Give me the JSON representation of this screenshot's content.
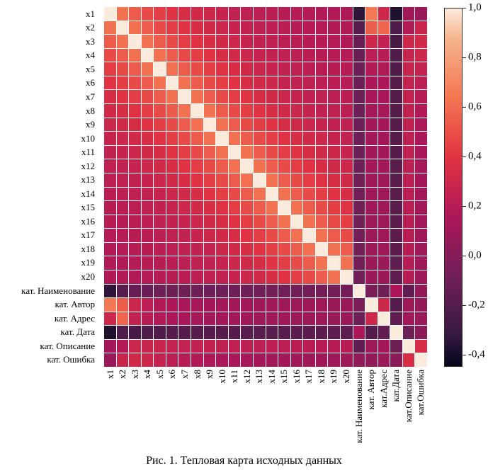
{
  "figure": {
    "caption": "Рис. 1. Тепловая карта исходных данных"
  },
  "chart_data": {
    "type": "heatmap",
    "title": "",
    "y_labels": [
      "x1",
      "x2",
      "x3",
      "x4",
      "x5",
      "x6",
      "x7",
      "x8",
      "x9",
      "x10",
      "x11",
      "x12",
      "x13",
      "x14",
      "x15",
      "x16",
      "x17",
      "x18",
      "x19",
      "x20",
      "кат. Наименование",
      "кат. Автор",
      "кат. Адрес",
      "кат. Дата",
      "кат. Описание",
      "кат. Ошибка"
    ],
    "x_labels": [
      "x1",
      "x2",
      "x3",
      "x4",
      "x5",
      "x6",
      "x7",
      "x8",
      "x9",
      "x10",
      "x11",
      "x12",
      "x13",
      "x14",
      "x15",
      "x16",
      "x17",
      "x18",
      "x19",
      "x20",
      "кат. Наименование",
      "кат. Автор",
      "кат.Адрес",
      "кат.Дата",
      "кат.Описание",
      "кат.Ошибка"
    ],
    "vmin": -0.45,
    "vmax": 1.0,
    "matrix": [
      [
        1.0,
        0.62,
        0.54,
        0.48,
        0.43,
        0.39,
        0.35,
        0.32,
        0.3,
        0.27,
        0.25,
        0.24,
        0.22,
        0.21,
        0.2,
        0.2,
        0.19,
        0.18,
        0.18,
        0.17,
        -0.35,
        0.65,
        0.3,
        -0.38,
        0.12,
        0.08
      ],
      [
        0.62,
        1.0,
        0.62,
        0.54,
        0.48,
        0.43,
        0.39,
        0.35,
        0.32,
        0.3,
        0.27,
        0.25,
        0.24,
        0.22,
        0.21,
        0.2,
        0.2,
        0.19,
        0.18,
        0.18,
        -0.18,
        0.55,
        0.58,
        -0.22,
        0.18,
        0.28
      ],
      [
        0.54,
        0.62,
        1.0,
        0.62,
        0.54,
        0.48,
        0.43,
        0.39,
        0.35,
        0.32,
        0.3,
        0.27,
        0.25,
        0.24,
        0.22,
        0.21,
        0.2,
        0.2,
        0.19,
        0.18,
        -0.12,
        0.3,
        0.25,
        -0.25,
        0.3,
        0.32
      ],
      [
        0.48,
        0.54,
        0.62,
        1.0,
        0.62,
        0.54,
        0.48,
        0.43,
        0.39,
        0.35,
        0.32,
        0.3,
        0.27,
        0.25,
        0.24,
        0.22,
        0.21,
        0.2,
        0.2,
        0.19,
        -0.12,
        0.22,
        0.2,
        -0.22,
        0.28,
        0.3
      ],
      [
        0.43,
        0.48,
        0.54,
        0.62,
        1.0,
        0.62,
        0.54,
        0.48,
        0.43,
        0.39,
        0.35,
        0.32,
        0.3,
        0.27,
        0.25,
        0.24,
        0.22,
        0.21,
        0.2,
        0.2,
        -0.1,
        0.18,
        0.18,
        -0.22,
        0.28,
        0.26
      ],
      [
        0.39,
        0.43,
        0.48,
        0.54,
        0.62,
        1.0,
        0.62,
        0.54,
        0.48,
        0.43,
        0.39,
        0.35,
        0.32,
        0.3,
        0.27,
        0.25,
        0.24,
        0.22,
        0.21,
        0.2,
        -0.1,
        0.15,
        0.15,
        -0.2,
        0.26,
        0.22
      ],
      [
        0.35,
        0.39,
        0.43,
        0.48,
        0.54,
        0.62,
        1.0,
        0.62,
        0.54,
        0.48,
        0.43,
        0.39,
        0.35,
        0.32,
        0.3,
        0.27,
        0.25,
        0.24,
        0.22,
        0.21,
        -0.1,
        0.14,
        0.14,
        -0.2,
        0.26,
        0.2
      ],
      [
        0.32,
        0.35,
        0.39,
        0.43,
        0.48,
        0.54,
        0.62,
        1.0,
        0.62,
        0.54,
        0.48,
        0.43,
        0.39,
        0.35,
        0.32,
        0.3,
        0.27,
        0.25,
        0.24,
        0.22,
        -0.1,
        0.13,
        0.13,
        -0.2,
        0.25,
        0.18
      ],
      [
        0.3,
        0.32,
        0.35,
        0.39,
        0.43,
        0.48,
        0.54,
        0.62,
        1.0,
        0.62,
        0.54,
        0.48,
        0.43,
        0.39,
        0.35,
        0.32,
        0.3,
        0.27,
        0.25,
        0.24,
        -0.09,
        0.12,
        0.12,
        -0.19,
        0.25,
        0.16
      ],
      [
        0.27,
        0.3,
        0.32,
        0.35,
        0.39,
        0.43,
        0.48,
        0.54,
        0.62,
        1.0,
        0.62,
        0.54,
        0.48,
        0.43,
        0.39,
        0.35,
        0.32,
        0.3,
        0.27,
        0.25,
        -0.09,
        0.12,
        0.12,
        -0.19,
        0.24,
        0.15
      ],
      [
        0.25,
        0.27,
        0.3,
        0.32,
        0.35,
        0.39,
        0.43,
        0.48,
        0.54,
        0.62,
        1.0,
        0.62,
        0.54,
        0.48,
        0.43,
        0.39,
        0.35,
        0.32,
        0.3,
        0.27,
        -0.09,
        0.11,
        0.11,
        -0.19,
        0.24,
        0.14
      ],
      [
        0.24,
        0.25,
        0.27,
        0.3,
        0.32,
        0.35,
        0.39,
        0.43,
        0.48,
        0.54,
        0.62,
        1.0,
        0.62,
        0.54,
        0.48,
        0.43,
        0.39,
        0.35,
        0.32,
        0.3,
        -0.09,
        0.11,
        0.11,
        -0.18,
        0.23,
        0.13
      ],
      [
        0.22,
        0.24,
        0.25,
        0.27,
        0.3,
        0.32,
        0.35,
        0.39,
        0.43,
        0.48,
        0.54,
        0.62,
        1.0,
        0.62,
        0.54,
        0.48,
        0.43,
        0.39,
        0.35,
        0.32,
        -0.08,
        0.1,
        0.1,
        -0.18,
        0.23,
        0.12
      ],
      [
        0.21,
        0.22,
        0.24,
        0.25,
        0.27,
        0.3,
        0.32,
        0.35,
        0.39,
        0.43,
        0.48,
        0.54,
        0.62,
        1.0,
        0.62,
        0.54,
        0.48,
        0.43,
        0.39,
        0.35,
        -0.08,
        0.1,
        0.1,
        -0.18,
        0.22,
        0.12
      ],
      [
        0.2,
        0.21,
        0.22,
        0.24,
        0.25,
        0.27,
        0.3,
        0.32,
        0.35,
        0.39,
        0.43,
        0.48,
        0.54,
        0.62,
        1.0,
        0.62,
        0.54,
        0.48,
        0.43,
        0.39,
        -0.08,
        0.1,
        0.1,
        -0.18,
        0.22,
        0.11
      ],
      [
        0.2,
        0.2,
        0.21,
        0.22,
        0.24,
        0.25,
        0.27,
        0.3,
        0.32,
        0.35,
        0.39,
        0.43,
        0.48,
        0.54,
        0.62,
        1.0,
        0.62,
        0.54,
        0.48,
        0.43,
        -0.08,
        0.09,
        0.09,
        -0.17,
        0.21,
        0.11
      ],
      [
        0.19,
        0.2,
        0.2,
        0.21,
        0.22,
        0.24,
        0.25,
        0.27,
        0.3,
        0.32,
        0.35,
        0.39,
        0.43,
        0.48,
        0.54,
        0.62,
        1.0,
        0.62,
        0.54,
        0.48,
        -0.07,
        0.09,
        0.09,
        -0.17,
        0.21,
        0.1
      ],
      [
        0.18,
        0.19,
        0.2,
        0.2,
        0.21,
        0.22,
        0.24,
        0.25,
        0.27,
        0.3,
        0.32,
        0.35,
        0.39,
        0.43,
        0.48,
        0.54,
        0.62,
        1.0,
        0.62,
        0.54,
        -0.07,
        0.09,
        0.09,
        -0.17,
        0.2,
        0.1
      ],
      [
        0.18,
        0.18,
        0.19,
        0.2,
        0.2,
        0.21,
        0.22,
        0.24,
        0.25,
        0.27,
        0.3,
        0.32,
        0.35,
        0.39,
        0.43,
        0.48,
        0.54,
        0.62,
        1.0,
        0.62,
        -0.07,
        0.08,
        0.08,
        -0.16,
        0.2,
        0.1
      ],
      [
        0.17,
        0.18,
        0.18,
        0.19,
        0.2,
        0.2,
        0.21,
        0.22,
        0.24,
        0.25,
        0.27,
        0.3,
        0.32,
        0.35,
        0.39,
        0.43,
        0.48,
        0.54,
        0.62,
        1.0,
        -0.07,
        0.08,
        0.08,
        -0.16,
        0.2,
        0.09
      ],
      [
        -0.35,
        -0.18,
        -0.12,
        -0.12,
        -0.1,
        -0.1,
        -0.1,
        -0.1,
        -0.09,
        -0.09,
        -0.09,
        -0.09,
        -0.08,
        -0.08,
        -0.08,
        -0.08,
        -0.07,
        -0.07,
        -0.07,
        -0.07,
        1.0,
        -0.05,
        -0.1,
        0.15,
        -0.15,
        0.05
      ],
      [
        0.65,
        0.55,
        0.3,
        0.22,
        0.18,
        0.15,
        0.14,
        0.13,
        0.12,
        0.12,
        0.11,
        0.11,
        0.1,
        0.1,
        0.1,
        0.09,
        0.09,
        0.09,
        0.08,
        0.08,
        -0.05,
        1.0,
        0.3,
        -0.2,
        0.1,
        0.05
      ],
      [
        0.3,
        0.58,
        0.25,
        0.2,
        0.18,
        0.15,
        0.14,
        0.13,
        0.12,
        0.12,
        0.11,
        0.11,
        0.1,
        0.1,
        0.1,
        0.09,
        0.09,
        0.09,
        0.08,
        0.08,
        -0.1,
        0.3,
        1.0,
        -0.15,
        0.12,
        0.08
      ],
      [
        -0.38,
        -0.22,
        -0.25,
        -0.22,
        -0.22,
        -0.2,
        -0.2,
        -0.2,
        -0.19,
        -0.19,
        -0.19,
        -0.18,
        -0.18,
        -0.18,
        -0.18,
        -0.17,
        -0.17,
        -0.17,
        -0.16,
        -0.16,
        0.15,
        -0.2,
        -0.15,
        1.0,
        -0.1,
        0.02
      ],
      [
        0.12,
        0.18,
        0.3,
        0.28,
        0.28,
        0.26,
        0.26,
        0.25,
        0.25,
        0.24,
        0.24,
        0.23,
        0.23,
        0.22,
        0.22,
        0.21,
        0.21,
        0.2,
        0.2,
        0.2,
        -0.15,
        0.1,
        0.12,
        -0.1,
        1.0,
        0.35
      ],
      [
        0.08,
        0.28,
        0.32,
        0.3,
        0.26,
        0.22,
        0.2,
        0.18,
        0.16,
        0.15,
        0.14,
        0.13,
        0.12,
        0.12,
        0.11,
        0.11,
        0.1,
        0.1,
        0.1,
        0.09,
        0.05,
        0.05,
        0.08,
        0.02,
        0.35,
        1.0
      ]
    ],
    "colorbar": {
      "position": "right",
      "tick_labels": [
        "1,0",
        "0,8",
        "0,6",
        "0,4",
        "0,2",
        "0,0",
        "-0,2",
        "-0,4"
      ],
      "tick_values": [
        1.0,
        0.8,
        0.6,
        0.4,
        0.2,
        0.0,
        -0.2,
        -0.4
      ]
    },
    "colormap_stops": [
      {
        "t": 0.0,
        "color": "#03051A"
      },
      {
        "t": 0.083,
        "color": "#35193E"
      },
      {
        "t": 0.25,
        "color": "#701F57"
      },
      {
        "t": 0.417,
        "color": "#AD1759"
      },
      {
        "t": 0.583,
        "color": "#E13342"
      },
      {
        "t": 0.75,
        "color": "#F37651"
      },
      {
        "t": 0.917,
        "color": "#F6B48E"
      },
      {
        "t": 1.0,
        "color": "#FAEBDD"
      }
    ],
    "grid_line_color": "#FFFFFF",
    "grid": true
  }
}
